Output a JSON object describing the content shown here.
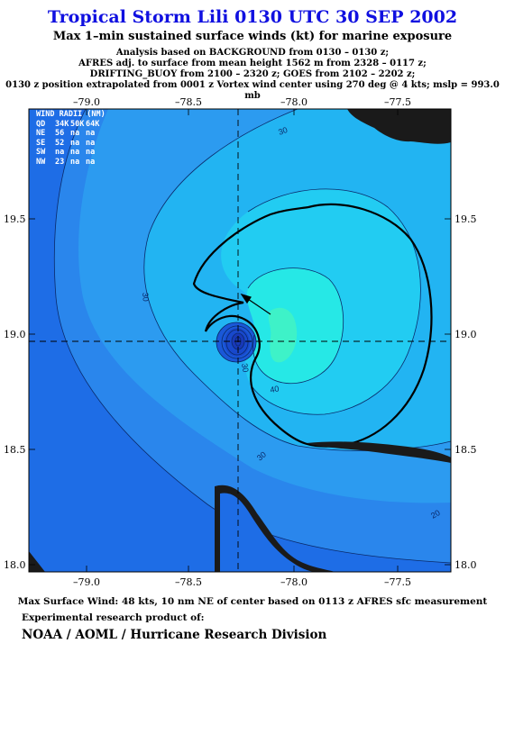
{
  "title": "Tropical Storm Lili 0130 UTC 30 SEP 2002",
  "subtitle": "Max 1–min sustained surface winds (kt) for marine exposure",
  "analysis_lines": [
    "Analysis based on  BACKGROUND from 0130 – 0130 z;",
    "AFRES adj. to surface from mean height 1562 m from 2328 – 0117 z;",
    "DRIFTING_BUOY from 2100 – 2320 z;  GOES from 2102 – 2202 z;",
    "0130 z position extrapolated from 0001 z Vortex wind center using 270 deg @ 4 kts; mslp = 993.0 mb"
  ],
  "x_ticks": [
    "–79.0",
    "–78.5",
    "–78.0",
    "–77.5"
  ],
  "y_ticks": [
    "19.5",
    "19.0",
    "18.5",
    "18.0"
  ],
  "wind_radii": {
    "header": "WIND RADII (NM)",
    "columns": [
      "QD",
      "34K",
      "50K",
      "64K"
    ],
    "rows": [
      [
        "NE",
        "56",
        "na",
        "na"
      ],
      [
        "SE",
        "52",
        "na",
        "na"
      ],
      [
        "SW",
        "na",
        "na",
        "na"
      ],
      [
        "NW",
        "23",
        "na",
        "na"
      ]
    ]
  },
  "contour_labels": [
    "30",
    "30",
    "40",
    "30",
    "20",
    "30"
  ],
  "colors": {
    "title": "#1010e0",
    "ocean_low": "#1e6de6",
    "wind_20": "#2a86ec",
    "wind_25": "#2c9bf0",
    "wind_30": "#22b4f2",
    "wind_35": "#22ccf2",
    "wind_40": "#26e8e6",
    "wind_45": "#3ef2c8",
    "eye_core": "#1840c8",
    "land": "#1a1a1a"
  },
  "footer": {
    "max_wind": "Max Surface Wind: 48 kts, 10 nm NE of center based on 0113 z AFRES sfc measurement",
    "experimental": "Experimental research product of:",
    "org": "NOAA / AOML / Hurricane Research Division"
  }
}
